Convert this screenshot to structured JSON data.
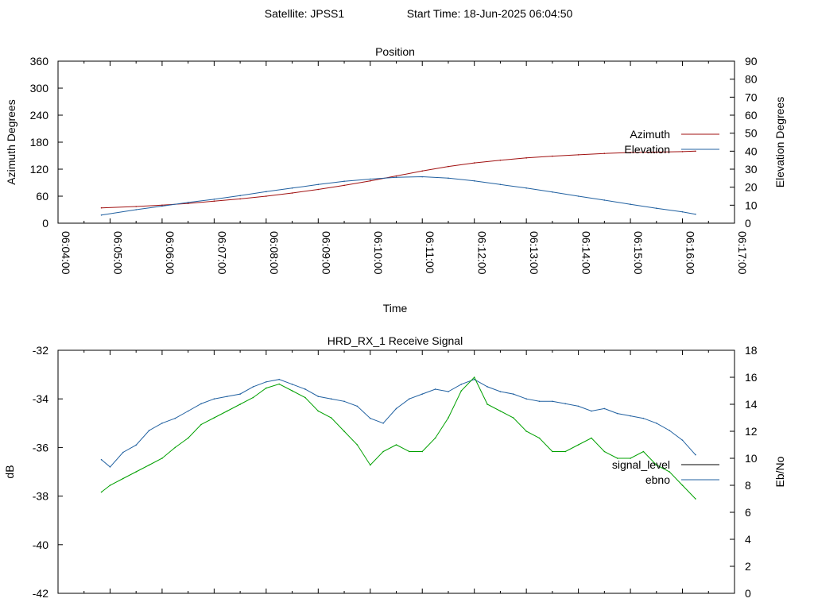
{
  "header": {
    "satellite_label": "Satellite: JPSS1",
    "start_time_label": "Start Time: 18-Jun-2025 06:04:50"
  },
  "colors": {
    "azimuth": "#a01010",
    "elevation": "#2060a0",
    "signal_level": "#2060a0",
    "ebno": "#00a000",
    "legend_signal_level_swatch": "#000000",
    "legend_ebno_swatch": "#2060a0"
  },
  "chart_data": [
    {
      "type": "line",
      "title": "Position",
      "xlabel": "Time",
      "ylabel": "Azimuth Degrees",
      "y2label": "Elevation Degrees",
      "xlim": [
        "06:04:00",
        "06:17:00"
      ],
      "ylim": [
        0,
        360
      ],
      "y2lim": [
        0,
        90
      ],
      "x_ticks": [
        "06:04:00",
        "06:05:00",
        "06:06:00",
        "06:07:00",
        "06:08:00",
        "06:09:00",
        "06:10:00",
        "06:11:00",
        "06:12:00",
        "06:13:00",
        "06:14:00",
        "06:15:00",
        "06:16:00",
        "06:17:00"
      ],
      "y_ticks": [
        "0",
        "60",
        "120",
        "180",
        "240",
        "300",
        "360"
      ],
      "y2_ticks": [
        "0",
        "10",
        "20",
        "30",
        "40",
        "50",
        "60",
        "70",
        "80",
        "90"
      ],
      "legend_position": "right",
      "series": [
        {
          "name": "Azimuth",
          "axis": "left",
          "x": [
            "06:04:50",
            "06:05:30",
            "06:06:00",
            "06:06:30",
            "06:07:00",
            "06:07:30",
            "06:08:00",
            "06:08:30",
            "06:09:00",
            "06:09:30",
            "06:10:00",
            "06:10:30",
            "06:11:00",
            "06:11:30",
            "06:12:00",
            "06:12:30",
            "06:13:00",
            "06:13:30",
            "06:14:00",
            "06:14:30",
            "06:15:00",
            "06:15:30",
            "06:16:00",
            "06:16:15"
          ],
          "values": [
            34,
            37,
            40,
            44,
            49,
            54,
            60,
            67,
            75,
            84,
            94,
            105,
            116,
            126,
            134,
            140,
            145,
            149,
            152,
            155,
            157,
            158,
            159,
            160
          ]
        },
        {
          "name": "Elevation",
          "axis": "right",
          "x": [
            "06:04:50",
            "06:05:30",
            "06:06:00",
            "06:06:30",
            "06:07:00",
            "06:07:30",
            "06:08:00",
            "06:08:30",
            "06:09:00",
            "06:09:30",
            "06:10:00",
            "06:10:30",
            "06:11:00",
            "06:11:30",
            "06:12:00",
            "06:12:30",
            "06:13:00",
            "06:13:30",
            "06:14:00",
            "06:14:30",
            "06:15:00",
            "06:15:30",
            "06:16:00",
            "06:16:15"
          ],
          "values": [
            4.5,
            7.5,
            9.5,
            11.5,
            13.3,
            15.3,
            17.5,
            19.5,
            21.5,
            23.3,
            24.5,
            25.5,
            25.8,
            25.0,
            23.5,
            21.5,
            19.5,
            17.3,
            15.0,
            12.8,
            10.5,
            8.3,
            6.3,
            5.0
          ]
        }
      ]
    },
    {
      "type": "line",
      "title": "HRD_RX_1 Receive Signal",
      "xlabel": "",
      "ylabel": "dB",
      "y2label": "Eb/No",
      "xlim": [
        "06:04:00",
        "06:17:00"
      ],
      "ylim": [
        -42,
        -32
      ],
      "y2lim": [
        0,
        18
      ],
      "y_ticks": [
        "-42",
        "-40",
        "-38",
        "-36",
        "-34",
        "-32"
      ],
      "y2_ticks": [
        "0",
        "2",
        "4",
        "6",
        "8",
        "10",
        "12",
        "14",
        "16",
        "18"
      ],
      "legend_position": "right",
      "series": [
        {
          "name": "signal_level",
          "axis": "left",
          "x": [
            "06:04:50",
            "06:05:00",
            "06:05:15",
            "06:05:30",
            "06:05:45",
            "06:06:00",
            "06:06:15",
            "06:06:30",
            "06:06:45",
            "06:07:00",
            "06:07:15",
            "06:07:30",
            "06:07:45",
            "06:08:00",
            "06:08:15",
            "06:08:30",
            "06:08:45",
            "06:09:00",
            "06:09:15",
            "06:09:30",
            "06:09:45",
            "06:10:00",
            "06:10:15",
            "06:10:30",
            "06:10:45",
            "06:11:00",
            "06:11:15",
            "06:11:30",
            "06:11:45",
            "06:12:00",
            "06:12:15",
            "06:12:30",
            "06:12:45",
            "06:13:00",
            "06:13:15",
            "06:13:30",
            "06:13:45",
            "06:14:00",
            "06:14:15",
            "06:14:30",
            "06:14:45",
            "06:15:00",
            "06:15:15",
            "06:15:30",
            "06:15:45",
            "06:16:00",
            "06:16:15"
          ],
          "values": [
            -36.5,
            -36.8,
            -36.2,
            -35.9,
            -35.3,
            -35.0,
            -34.8,
            -34.5,
            -34.2,
            -34.0,
            -33.9,
            -33.8,
            -33.5,
            -33.3,
            -33.2,
            -33.4,
            -33.6,
            -33.9,
            -34.0,
            -34.1,
            -34.3,
            -34.8,
            -35.0,
            -34.4,
            -34.0,
            -33.8,
            -33.6,
            -33.7,
            -33.4,
            -33.2,
            -33.5,
            -33.7,
            -33.8,
            -34.0,
            -34.1,
            -34.1,
            -34.2,
            -34.3,
            -34.5,
            -34.4,
            -34.6,
            -34.7,
            -34.8,
            -35.0,
            -35.3,
            -35.7,
            -36.3
          ]
        },
        {
          "name": "ebno",
          "axis": "right",
          "x": [
            "06:04:50",
            "06:05:00",
            "06:05:15",
            "06:05:30",
            "06:05:45",
            "06:06:00",
            "06:06:15",
            "06:06:30",
            "06:06:45",
            "06:07:00",
            "06:07:15",
            "06:07:30",
            "06:07:45",
            "06:08:00",
            "06:08:15",
            "06:08:30",
            "06:08:45",
            "06:09:00",
            "06:09:15",
            "06:09:30",
            "06:09:45",
            "06:10:00",
            "06:10:15",
            "06:10:30",
            "06:10:45",
            "06:11:00",
            "06:11:15",
            "06:11:30",
            "06:11:45",
            "06:12:00",
            "06:12:15",
            "06:12:30",
            "06:12:45",
            "06:13:00",
            "06:13:15",
            "06:13:30",
            "06:13:45",
            "06:14:00",
            "06:14:15",
            "06:14:30",
            "06:14:45",
            "06:15:00",
            "06:15:15",
            "06:15:30",
            "06:15:45",
            "06:16:00",
            "06:16:15"
          ],
          "values": [
            7.5,
            8.0,
            8.5,
            9.0,
            9.5,
            10.0,
            10.8,
            11.5,
            12.5,
            13.0,
            13.5,
            14.0,
            14.5,
            15.2,
            15.5,
            15.0,
            14.5,
            13.5,
            13.0,
            12.0,
            11.0,
            9.5,
            10.5,
            11.0,
            10.5,
            10.5,
            11.5,
            13.0,
            15.0,
            16.0,
            14.0,
            13.5,
            13.0,
            12.0,
            11.5,
            10.5,
            10.5,
            11.0,
            11.5,
            10.5,
            10.0,
            10.0,
            10.5,
            9.5,
            9.0,
            8.0,
            7.0
          ]
        }
      ]
    }
  ]
}
